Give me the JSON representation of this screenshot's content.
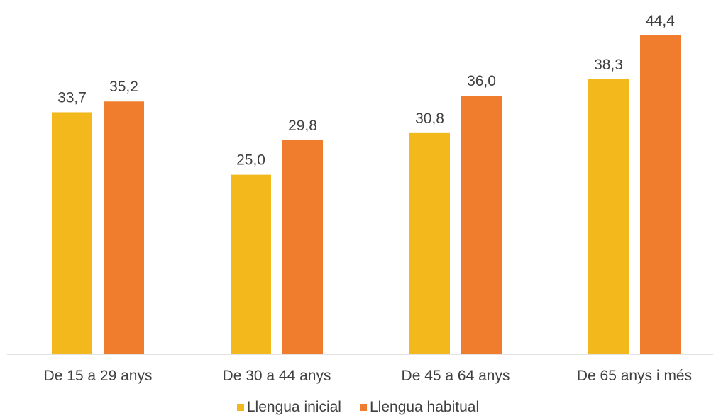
{
  "chart_data": {
    "type": "bar",
    "categories": [
      "De 15 a 29 anys",
      "De 30 a 44 anys",
      "De 45 a 64 anys",
      "De 65 anys i més"
    ],
    "series": [
      {
        "name": "Llengua inicial",
        "values": [
          33.7,
          25.0,
          30.8,
          38.3
        ],
        "labels": [
          "33,7",
          "25,0",
          "30,8",
          "38,3"
        ],
        "color": "#F2B81C"
      },
      {
        "name": "Llengua habitual",
        "values": [
          35.2,
          29.8,
          36.0,
          44.4
        ],
        "labels": [
          "35,2",
          "29,8",
          "36,0",
          "44,4"
        ],
        "color": "#EF7D2D"
      }
    ],
    "title": "",
    "xlabel": "",
    "ylabel": "",
    "ylim": [
      0,
      47
    ],
    "grid": false,
    "legend_position": "bottom"
  }
}
